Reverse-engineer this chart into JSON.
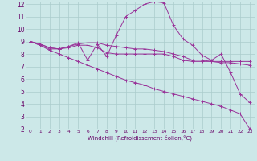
{
  "xlabel": "Windchill (Refroidissement éolien,°C)",
  "x": [
    0,
    1,
    2,
    3,
    4,
    5,
    6,
    7,
    8,
    9,
    10,
    11,
    12,
    13,
    14,
    15,
    16,
    17,
    18,
    19,
    20,
    21,
    22,
    23
  ],
  "series": [
    [
      9.0,
      8.8,
      8.5,
      8.4,
      8.6,
      8.9,
      7.5,
      8.8,
      7.8,
      9.5,
      11.0,
      11.5,
      12.0,
      12.2,
      12.1,
      10.3,
      9.2,
      8.7,
      7.9,
      7.5,
      8.0,
      6.5,
      4.8,
      4.1
    ],
    [
      9.0,
      8.8,
      8.5,
      8.4,
      8.5,
      8.7,
      8.7,
      8.5,
      8.1,
      8.0,
      8.0,
      8.0,
      8.0,
      8.0,
      8.0,
      7.8,
      7.5,
      7.4,
      7.4,
      7.4,
      7.4,
      7.4,
      7.4,
      7.4
    ],
    [
      9.0,
      8.7,
      8.4,
      8.4,
      8.6,
      8.8,
      8.9,
      8.9,
      8.7,
      8.6,
      8.5,
      8.4,
      8.4,
      8.3,
      8.2,
      8.0,
      7.8,
      7.5,
      7.5,
      7.4,
      7.3,
      7.3,
      7.2,
      7.1
    ],
    [
      9.0,
      8.7,
      8.3,
      8.0,
      7.7,
      7.4,
      7.1,
      6.8,
      6.5,
      6.2,
      5.9,
      5.7,
      5.5,
      5.2,
      5.0,
      4.8,
      4.6,
      4.4,
      4.2,
      4.0,
      3.8,
      3.5,
      3.2,
      2.0
    ]
  ],
  "line_color": "#993399",
  "marker": "+",
  "bg_color": "#cce8e8",
  "grid_color": "#aacccc",
  "ylim": [
    2,
    12
  ],
  "xlim": [
    -0.5,
    23.5
  ],
  "yticks": [
    2,
    3,
    4,
    5,
    6,
    7,
    8,
    9,
    10,
    11,
    12
  ],
  "xticks": [
    0,
    1,
    2,
    3,
    4,
    5,
    6,
    7,
    8,
    9,
    10,
    11,
    12,
    13,
    14,
    15,
    16,
    17,
    18,
    19,
    20,
    21,
    22,
    23
  ],
  "tick_color": "#660066",
  "label_fontsize": 5.0,
  "ytick_fontsize": 5.5,
  "xtick_fontsize": 4.2
}
